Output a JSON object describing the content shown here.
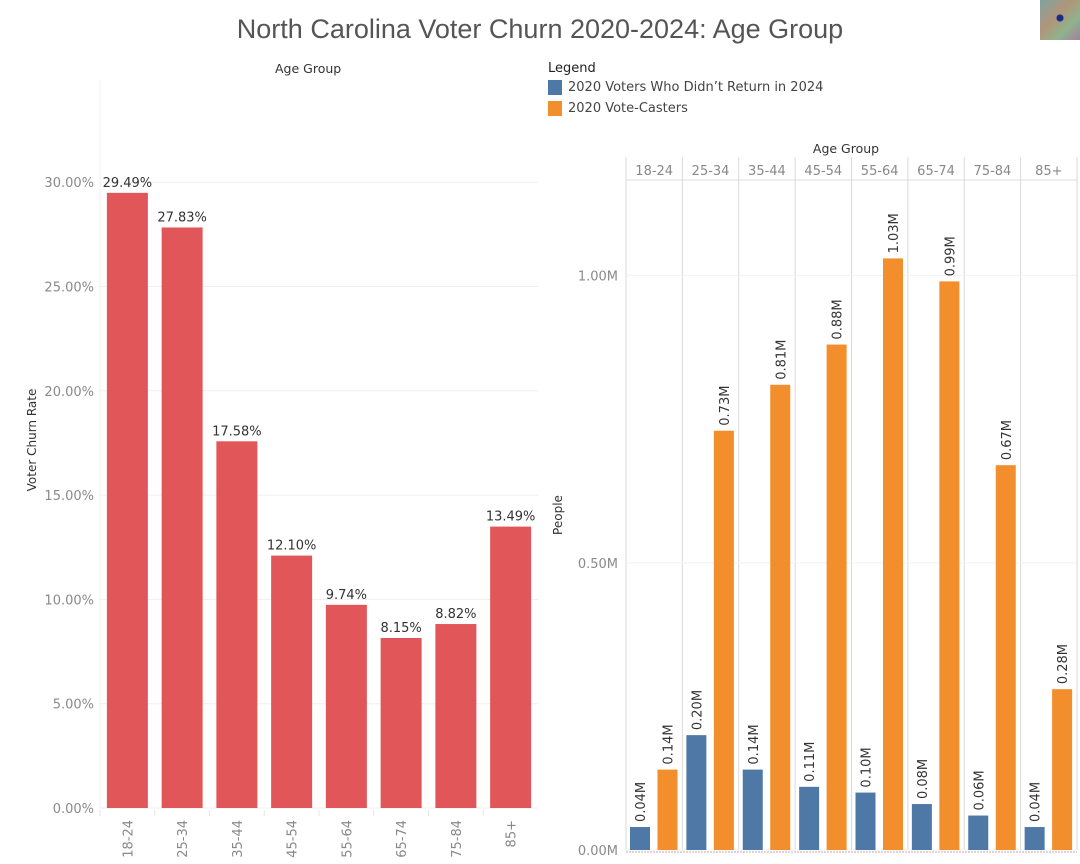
{
  "title": "North Carolina Voter Churn 2020-2024: Age Group",
  "thumbnail": {
    "icon": "thumbnail-image"
  },
  "legend": {
    "title": "Legend",
    "items": [
      {
        "label": "2020 Voters Who Didn’t Return in 2024",
        "color": "#4e79a7"
      },
      {
        "label": "2020 Vote-Casters",
        "color": "#f28e2b"
      }
    ]
  },
  "chart_data": [
    {
      "type": "bar",
      "title": "",
      "header": "Age Group",
      "xlabel": "",
      "ylabel": "Voter Churn Rate",
      "categories": [
        "18-24",
        "25-34",
        "35-44",
        "45-54",
        "55-64",
        "65-74",
        "75-84",
        "85+"
      ],
      "values": [
        29.49,
        27.83,
        17.58,
        12.1,
        9.74,
        8.15,
        8.82,
        13.49
      ],
      "value_labels": [
        "29.49%",
        "27.83%",
        "17.58%",
        "12.10%",
        "9.74%",
        "8.15%",
        "8.82%",
        "13.49%"
      ],
      "ylim": [
        0,
        34.9
      ],
      "yticks": [
        0,
        5,
        10,
        15,
        20,
        25,
        30
      ],
      "ytick_labels": [
        "0.00%",
        "5.00%",
        "10.00%",
        "15.00%",
        "20.00%",
        "25.00%",
        "30.00%"
      ],
      "color": "#e15759",
      "grid": true
    },
    {
      "type": "bar",
      "title": "",
      "header": "Age Group",
      "xlabel": "",
      "ylabel": "People",
      "categories": [
        "18-24",
        "25-34",
        "35-44",
        "45-54",
        "55-64",
        "65-74",
        "75-84",
        "85+"
      ],
      "series": [
        {
          "name": "2020 Voters Who Didn’t Return in 2024",
          "color": "#4e79a7",
          "values": [
            0.04,
            0.2,
            0.14,
            0.11,
            0.1,
            0.08,
            0.06,
            0.04
          ],
          "value_labels": [
            "0.04M",
            "0.20M",
            "0.14M",
            "0.11M",
            "0.10M",
            "0.08M",
            "0.06M",
            "0.04M"
          ]
        },
        {
          "name": "2020 Vote-Casters",
          "color": "#f28e2b",
          "values": [
            0.14,
            0.73,
            0.81,
            0.88,
            1.03,
            0.99,
            0.67,
            0.28
          ],
          "value_labels": [
            "0.14M",
            "0.73M",
            "0.81M",
            "0.88M",
            "1.03M",
            "0.99M",
            "0.67M",
            "0.28M"
          ]
        }
      ],
      "ylim": [
        0,
        1.17
      ],
      "yticks": [
        0,
        0.5,
        1.0
      ],
      "ytick_labels": [
        "0.00M",
        "0.50M",
        "1.00M"
      ],
      "grid": true,
      "legend_position": "top"
    }
  ]
}
